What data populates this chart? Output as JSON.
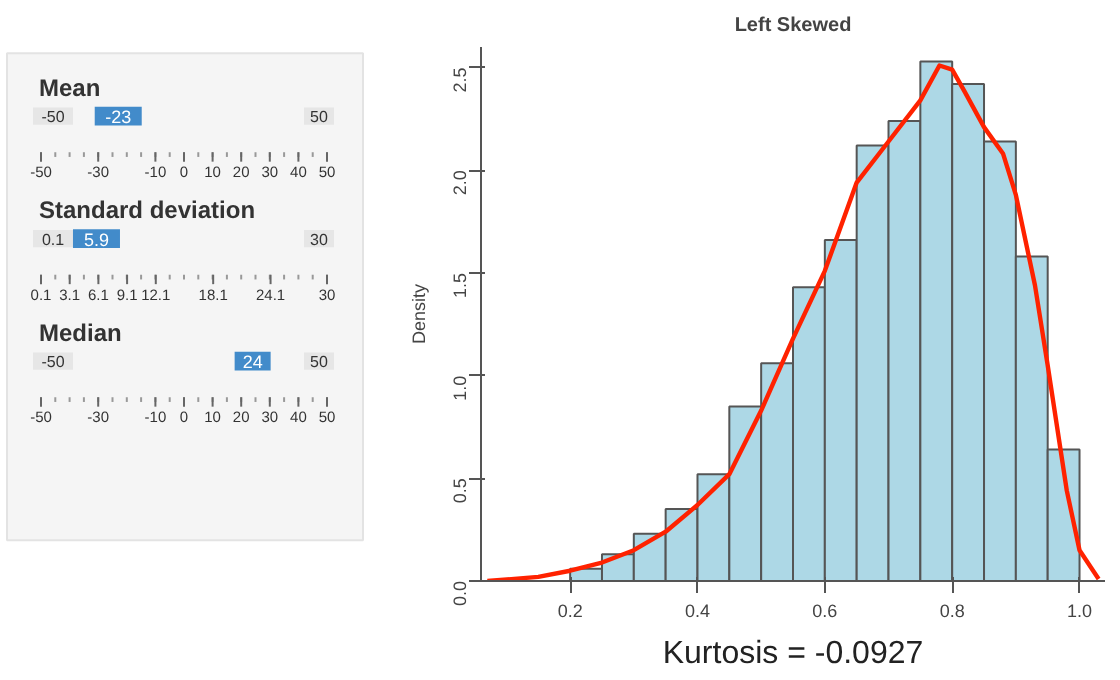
{
  "chart_data": [
    {
      "type": "other",
      "annotations": [
        "Mean",
        "-50",
        "-23",
        "50",
        "-50",
        "-30",
        "-10",
        "0",
        "10",
        "20",
        "30",
        "40",
        "50",
        "Standard deviation",
        "0.1",
        "5.9",
        "30",
        "0.1",
        "3.1",
        "6.1",
        "9.1",
        "12.1",
        "18.1",
        "24.1",
        "30",
        "Median",
        "-50",
        "24",
        "50",
        "-50",
        "-30",
        "-10",
        "0",
        "10",
        "20",
        "30",
        "40",
        "50"
      ]
    },
    {
      "type": "histogram",
      "title": "Left Skewed",
      "ylabel": "Density",
      "annotations": [
        "Kurtosis = -0.0927"
      ],
      "bins": [
        0.2,
        0.25,
        0.3,
        0.35,
        0.4,
        0.45,
        0.5,
        0.55,
        0.6,
        0.65,
        0.7,
        0.75,
        0.8,
        0.85,
        0.9,
        0.95,
        1.0
      ],
      "values": [
        0.06,
        0.13,
        0.23,
        0.35,
        0.52,
        0.85,
        1.06,
        1.43,
        1.66,
        2.12,
        2.24,
        2.53,
        2.42,
        2.14,
        1.58,
        0.64
      ],
      "color": "#add8e6",
      "series": [
        {
          "type": "line",
          "color": "#ff2200",
          "x": [
            0.07,
            0.15,
            0.2,
            0.25,
            0.3,
            0.35,
            0.4,
            0.45,
            0.5,
            0.55,
            0.6,
            0.65,
            0.7,
            0.75,
            0.78,
            0.8,
            0.82,
            0.85,
            0.88,
            0.9,
            0.93,
            0.95,
            0.98,
            1.0,
            1.03
          ],
          "values": [
            0,
            0.02,
            0.05,
            0.09,
            0.15,
            0.24,
            0.37,
            0.52,
            0.83,
            1.18,
            1.51,
            1.94,
            2.14,
            2.34,
            2.51,
            2.49,
            2.38,
            2.21,
            2.08,
            1.88,
            1.44,
            1.05,
            0.44,
            0.15,
            0.01
          ]
        }
      ],
      "xlim": [
        0.06,
        1.04
      ],
      "ylim": [
        0,
        2.6
      ],
      "xticks": [
        0.2,
        0.4,
        0.6,
        0.8,
        {
          "value": 1.0,
          "label": "1.0"
        }
      ],
      "yticks": [
        {
          "value": 0,
          "label": "0.0"
        },
        0.5,
        {
          "value": 1,
          "label": "1.0"
        },
        1.5,
        {
          "value": 2,
          "label": "2.0"
        },
        2.5
      ],
      "grid": false
    }
  ]
}
